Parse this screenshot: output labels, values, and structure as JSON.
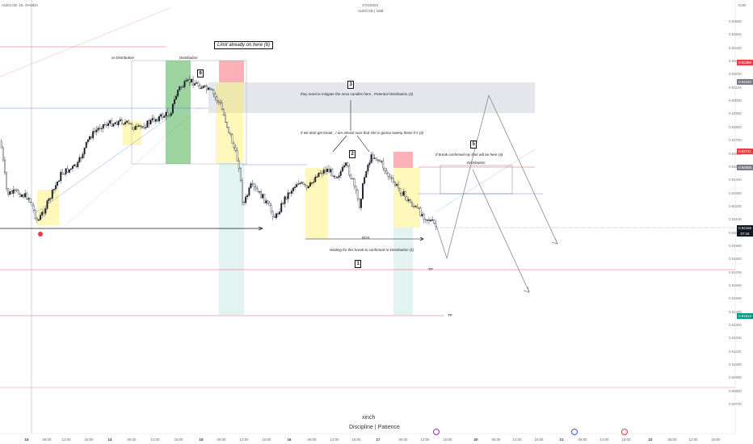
{
  "header": {
    "symbol": "AUDCAD, 15, OANDA",
    "date": "17/2/2023",
    "subtitle": "AUDCAD | 15M"
  },
  "currency": "CAD",
  "annotations": {
    "limit_already": "Limit already on here (6)",
    "re_distribution": "re-Distribution",
    "distribution_top": "Distribution",
    "box6": "6",
    "box3": "3",
    "box2": "2",
    "box5": "5",
    "box1": "1",
    "mitigate": "they need to mitigate the nevo candles here , Potential Distribution (3)",
    "dont_break": "If we dont get break , I am almost sure that she is gonna sweep these h's (2)",
    "break_confirmed": "If break confirmed my limit will be here (4)",
    "distribution_right": "Distribution",
    "bos": "BOS",
    "waiting": "Waiting for this break to confirmed re-Distribution (1)",
    "tp1": "TP",
    "tp2": "TP"
  },
  "price_axis": {
    "labels": [
      "0.93600",
      "0.93500",
      "0.93400",
      "0.93300",
      "0.93200",
      "0.93100",
      "0.93000",
      "0.92900",
      "0.92800",
      "0.92700",
      "0.92600",
      "0.92500",
      "0.92400",
      "0.92300",
      "0.92200",
      "0.92100",
      "0.92000",
      "0.91900",
      "0.91800",
      "0.91700",
      "0.91600",
      "0.91500",
      "0.91400",
      "0.91300",
      "0.91200",
      "0.91100",
      "0.91000",
      "0.90900",
      "0.90800",
      "0.90700"
    ],
    "badges": [
      {
        "value": "0.93386",
        "color": "#f23645"
      },
      {
        "value": "0.93240",
        "color": "#787b86"
      },
      {
        "value": "0.92721",
        "color": "#f23645"
      },
      {
        "value": "0.92608",
        "color": "#787b86"
      },
      {
        "value": "0.92166",
        "color": "#131722",
        "sub": "07:16"
      },
      {
        "value": "0.91512",
        "color": "#089981"
      }
    ]
  },
  "time_axis": [
    "15",
    "06:00",
    "12:00",
    "18:00",
    "14",
    "06:00",
    "12:00",
    "18:00",
    "15",
    "06:00",
    "12:00",
    "18:00",
    "16",
    "06:00",
    "12:00",
    "18:00",
    "17",
    "06:00",
    "12:00",
    "18:00",
    "20",
    "06:30",
    "12:00",
    "18:00",
    "21",
    "06:00",
    "12:00",
    "18:00",
    "22",
    "06:00",
    "12:00",
    "18:00"
  ],
  "watermark": {
    "name": "xinch",
    "motto": "Discipline | Patience"
  },
  "chart_data": {
    "type": "candlestick",
    "symbol": "AUDCAD",
    "timeframe": "15",
    "ylim": [
      0.907,
      0.937
    ],
    "key_levels": {
      "current_price": 0.92166,
      "limit_zone_top": 0.9324,
      "limit_zone_bottom": 0.93,
      "distribution_zone_top": 0.92608,
      "distribution_zone_bottom": 0.924,
      "bos_level": 0.921,
      "tp1": 0.9185,
      "tp2": 0.91512
    }
  }
}
